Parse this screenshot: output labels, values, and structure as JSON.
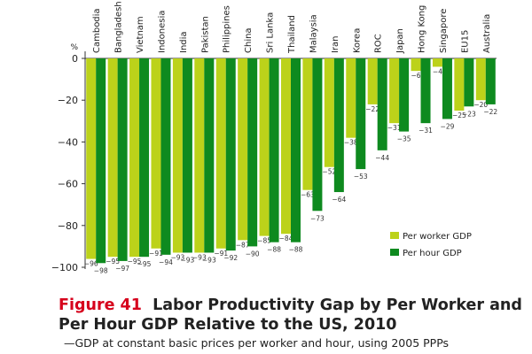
{
  "caption": {
    "figure_label": "Figure 41",
    "title": "Labor Productivity Gap by Per Worker and Per Hour GDP Relative to the US, 2010",
    "subtitle": "—GDP at constant basic prices per worker and hour, using 2005 PPPs"
  },
  "chart_data": {
    "type": "bar",
    "unit_label": "%",
    "categories": [
      "Cambodia",
      "Bangladesh",
      "Vietnam",
      "Indonesia",
      "India",
      "Pakistan",
      "Philippines",
      "China",
      "Sri Lanka",
      "Thailand",
      "Malaysia",
      "Iran",
      "Korea",
      "ROC",
      "Japan",
      "Hong Kong",
      "Singapore",
      "EU15",
      "Australia"
    ],
    "series": [
      {
        "name": "Per worker GDP",
        "color": "#bcd21a",
        "values": [
          -96,
          -95,
          -95,
          -91,
          -93,
          -93,
          -91,
          -87,
          -85,
          -84,
          -63,
          -52,
          -38,
          -22,
          -31,
          -6,
          -4,
          -25,
          -20
        ]
      },
      {
        "name": "Per hour GDP",
        "color": "#0e8a1f",
        "values": [
          -98,
          -97,
          -95,
          -94,
          -93,
          -93,
          -92,
          -90,
          -88,
          -88,
          -73,
          -64,
          -53,
          -44,
          -35,
          -31,
          -29,
          -23,
          -22
        ]
      }
    ],
    "ylim": [
      -100,
      0
    ],
    "yticks": [
      0,
      -20,
      -40,
      -60,
      -80,
      -100
    ],
    "legend_position": "bottom-right",
    "colors": {
      "per_worker": "#bcd21a",
      "per_hour": "#0e8a1f",
      "caption_accent": "#d6001c"
    }
  }
}
